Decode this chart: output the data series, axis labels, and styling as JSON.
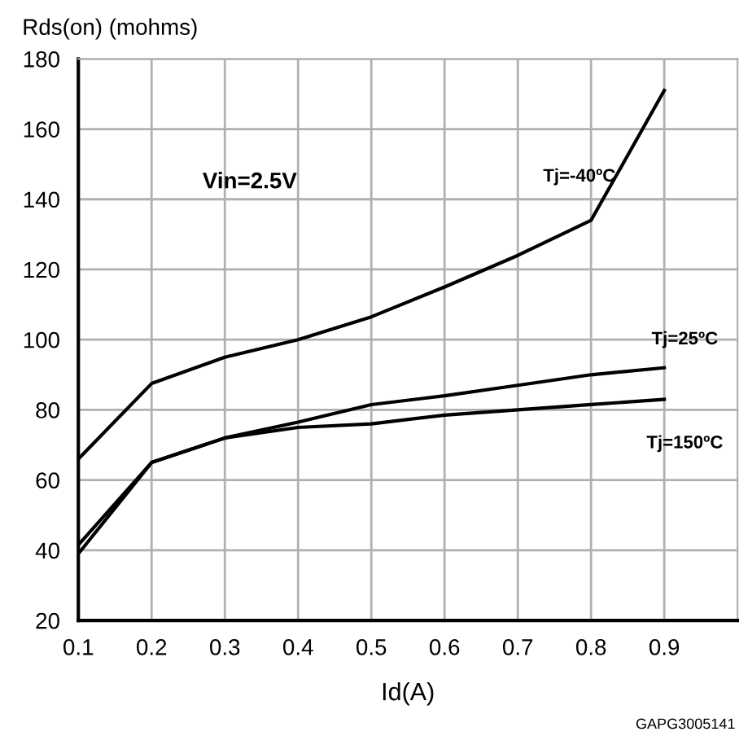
{
  "chart_data": {
    "type": "line",
    "ylabel": "Rds(on) (mohms)",
    "xlabel": "Id(A)",
    "x": [
      0.1,
      0.2,
      0.3,
      0.4,
      0.5,
      0.6,
      0.7,
      0.8,
      0.9
    ],
    "series": [
      {
        "name": "Tj=-40ºC",
        "color": "#000000",
        "values": [
          66,
          87.5,
          95,
          100,
          106.5,
          115,
          124,
          134,
          171
        ]
      },
      {
        "name": "Tj=25ºC",
        "color": "#000000",
        "values": [
          41.5,
          65,
          72,
          76.5,
          81.5,
          84,
          87,
          90,
          92
        ]
      },
      {
        "name": "Tj=150ºC",
        "color": "#000000",
        "values": [
          39,
          65,
          72,
          75,
          76,
          78.5,
          80,
          81.5,
          83
        ]
      }
    ],
    "xlim": [
      0.1,
      1.0
    ],
    "xticks": [
      0.1,
      0.2,
      0.3,
      0.4,
      0.5,
      0.6,
      0.7,
      0.8,
      0.9
    ],
    "ylim": [
      20,
      180
    ],
    "yticks": [
      20,
      40,
      60,
      80,
      100,
      120,
      140,
      160,
      180
    ],
    "grid": true,
    "legend": false,
    "marker": "none",
    "line_style": "solid",
    "annotations": [
      "Vin=2.5V",
      "GAPG3005141"
    ]
  }
}
